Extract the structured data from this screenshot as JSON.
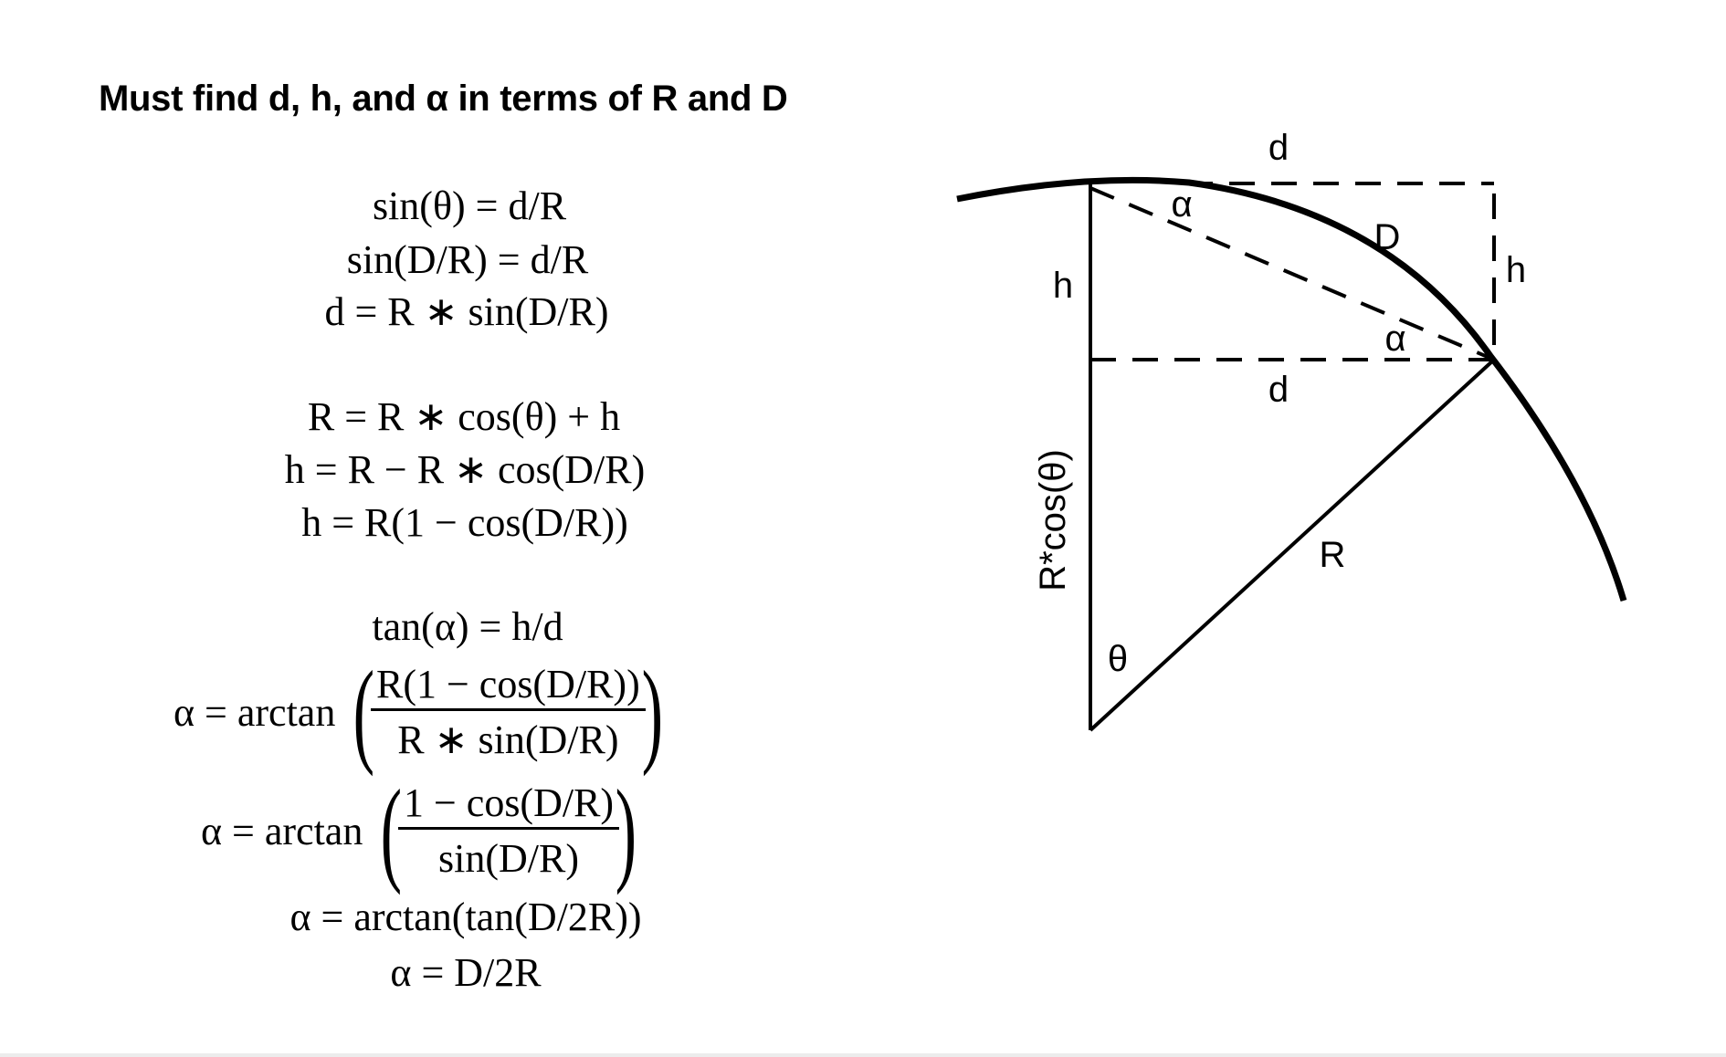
{
  "heading": "Must find d, h, and α in terms of R and D",
  "equations": {
    "group1": [
      "sin(θ) = d/R",
      "sin(D/R) = d/R",
      "d = R ∗ sin(D/R)"
    ],
    "group2": [
      "R = R ∗ cos(θ) + h",
      "h = R − R ∗ cos(D/R)",
      "h = R(1 − cos(D/R))"
    ],
    "group3_line1": "tan(α) = h/d",
    "frac1": {
      "lhs": "α = arctan",
      "numerator": "R(1 − cos(D/R))",
      "denominator": "R ∗ sin(D/R)"
    },
    "frac2": {
      "lhs": "α = arctan",
      "numerator": "1 − cos(D/R)",
      "denominator": "sin(D/R)"
    },
    "group3_line4": "α = arctan(tan(D/2R))",
    "group3_line5": "α = D/2R"
  },
  "diagram": {
    "labels": {
      "d_top": "d",
      "d_mid": "d",
      "h_left": "h",
      "h_right": "h",
      "D_arc": "D",
      "alpha_top": "α",
      "alpha_bottom": "α",
      "R_radius": "R",
      "theta": "θ",
      "rcos": "R*cos(θ)"
    }
  }
}
